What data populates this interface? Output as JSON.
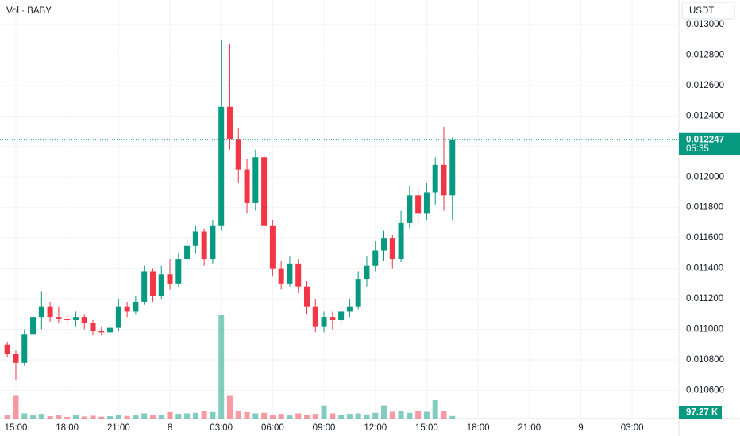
{
  "chart_data": {
    "type": "candlestick",
    "title": "Vol · BABY",
    "currency": "USDT",
    "countdown": "05:35",
    "last_volume_label": "97.27 K",
    "up_color": "#089981",
    "down_color": "#f23645",
    "grid": true,
    "categories": [
      null,
      "15:00",
      null,
      null,
      null,
      null,
      null,
      "18:00",
      null,
      null,
      null,
      null,
      null,
      "21:00",
      null,
      null,
      null,
      null,
      null,
      "8",
      null,
      null,
      null,
      null,
      null,
      "03:00",
      null,
      null,
      null,
      null,
      null,
      "06:00",
      null,
      null,
      null,
      null,
      null,
      "09:00",
      null,
      null,
      null,
      null,
      null,
      "12:00",
      null,
      null,
      null,
      null,
      null,
      "15:00",
      null,
      null,
      null,
      null,
      null,
      "18:00",
      null,
      null,
      null,
      null,
      null,
      "21:00",
      null,
      null,
      null,
      null,
      null,
      "9",
      null,
      null,
      null,
      null,
      null,
      "03:00",
      null,
      null,
      null,
      null,
      null
    ],
    "open": [
      0.0109,
      0.01084,
      0.01078,
      0.01097,
      0.01108,
      0.01115,
      0.01108,
      0.01107,
      0.01106,
      0.01108,
      0.01104,
      0.01099,
      0.01098,
      0.01101,
      0.01115,
      0.01112,
      0.01118,
      0.01138,
      0.01122,
      0.01136,
      0.0113,
      0.01146,
      0.01155,
      0.01164,
      0.01146,
      0.01168,
      0.01246,
      0.01225,
      0.01205,
      0.01183,
      0.01213,
      0.01168,
      0.0114,
      0.0113,
      0.01143,
      0.01128,
      0.01115,
      0.01102,
      0.01108,
      0.01106,
      0.01112,
      0.01115,
      0.01133,
      0.01142,
      0.01152,
      0.0116,
      0.01146,
      0.0117,
      0.01188,
      0.01176,
      0.0119,
      0.01208,
      0.01188,
      null,
      null,
      null,
      null,
      null,
      null,
      null,
      null,
      null,
      null,
      null,
      null,
      null,
      null,
      null,
      null,
      null,
      null,
      null,
      null,
      null,
      null,
      null,
      null,
      null,
      null
    ],
    "high": [
      0.01092,
      0.01086,
      0.011,
      0.01112,
      0.01125,
      0.01118,
      0.01115,
      0.0111,
      0.01112,
      0.0111,
      0.01106,
      0.01102,
      0.01104,
      0.0112,
      0.01118,
      0.01122,
      0.01142,
      0.0114,
      0.01142,
      0.01146,
      0.0115,
      0.0116,
      0.01168,
      0.01166,
      0.01172,
      0.0129,
      0.01287,
      0.01232,
      0.01212,
      0.01218,
      0.01215,
      0.01172,
      0.01145,
      0.01148,
      0.01146,
      0.01132,
      0.0112,
      0.01112,
      0.01112,
      0.01115,
      0.0112,
      0.01138,
      0.01148,
      0.01158,
      0.01165,
      0.01162,
      0.01178,
      0.01194,
      0.01192,
      0.01196,
      0.01213,
      0.01233,
      0.01226,
      null,
      null,
      null,
      null,
      null,
      null,
      null,
      null,
      null,
      null,
      null,
      null,
      null,
      null,
      null,
      null,
      null,
      null,
      null,
      null,
      null,
      null,
      null,
      null,
      null,
      null
    ],
    "low": [
      0.01082,
      0.01067,
      0.01076,
      0.01094,
      0.011,
      0.01105,
      0.01104,
      0.01103,
      0.01102,
      0.011,
      0.01096,
      0.01096,
      0.01096,
      0.01099,
      0.01108,
      0.0111,
      0.01116,
      0.01118,
      0.0112,
      0.01126,
      0.01128,
      0.0114,
      0.0115,
      0.01142,
      0.01143,
      0.01165,
      0.01218,
      0.01196,
      0.01176,
      0.01178,
      0.01162,
      0.01135,
      0.01126,
      0.01128,
      0.01124,
      0.0111,
      0.01098,
      0.01098,
      0.011,
      0.01103,
      0.01108,
      0.01113,
      0.01128,
      0.01138,
      0.01145,
      0.0114,
      0.01144,
      0.01166,
      0.0117,
      0.01172,
      0.01182,
      0.01178,
      0.01172,
      null,
      null,
      null,
      null,
      null,
      null,
      null,
      null,
      null,
      null,
      null,
      null,
      null,
      null,
      null,
      null,
      null,
      null,
      null,
      null,
      null,
      null,
      null,
      null,
      null,
      null
    ],
    "close": [
      0.01084,
      0.01078,
      0.01097,
      0.01108,
      0.01115,
      0.01108,
      0.01107,
      0.01106,
      0.01108,
      0.01104,
      0.01099,
      0.01098,
      0.01101,
      0.01115,
      0.01112,
      0.01118,
      0.01138,
      0.01122,
      0.01136,
      0.0113,
      0.01146,
      0.01155,
      0.01164,
      0.01146,
      0.01168,
      0.01246,
      0.01225,
      0.01205,
      0.01183,
      0.01213,
      0.01168,
      0.0114,
      0.0113,
      0.01143,
      0.01128,
      0.01115,
      0.01102,
      0.01108,
      0.01106,
      0.01112,
      0.01115,
      0.01133,
      0.01142,
      0.01152,
      0.0116,
      0.01146,
      0.0117,
      0.01188,
      0.01176,
      0.0119,
      0.01208,
      0.01188,
      0.012247,
      null,
      null,
      null,
      null,
      null,
      null,
      null,
      null,
      null,
      null,
      null,
      null,
      null,
      null,
      null,
      null,
      null,
      null,
      null,
      null,
      null,
      null,
      null,
      null,
      null,
      null
    ],
    "volume": [
      150,
      900,
      200,
      120,
      180,
      90,
      120,
      60,
      150,
      80,
      110,
      70,
      90,
      150,
      100,
      120,
      200,
      130,
      150,
      250,
      180,
      200,
      220,
      300,
      250,
      4000,
      900,
      300,
      250,
      200,
      220,
      150,
      180,
      120,
      200,
      150,
      180,
      500,
      200,
      150,
      180,
      200,
      160,
      220,
      500,
      260,
      280,
      220,
      300,
      260,
      700,
      300,
      97.27,
      null,
      null,
      null,
      null,
      null,
      null,
      null,
      null,
      null,
      null,
      null,
      null,
      null,
      null,
      null,
      null,
      null,
      null,
      null,
      null,
      null,
      null,
      null,
      null,
      null,
      null
    ],
    "ylim": [
      0.010415,
      0.013161
    ],
    "yticks": [
      {
        "value": 0.0106,
        "label": "0.010600"
      },
      {
        "value": 0.0108,
        "label": "0.010800"
      },
      {
        "value": 0.011,
        "label": "0.011000"
      },
      {
        "value": 0.0112,
        "label": "0.011200"
      },
      {
        "value": 0.0114,
        "label": "0.011400"
      },
      {
        "value": 0.0116,
        "label": "0.011600"
      },
      {
        "value": 0.0118,
        "label": "0.011800"
      },
      {
        "value": 0.012,
        "label": "0.012000"
      },
      {
        "value": 0.0122,
        "label": "0.012200"
      },
      {
        "value": 0.0124,
        "label": "0.012400"
      },
      {
        "value": 0.0126,
        "label": "0.012600"
      },
      {
        "value": 0.0128,
        "label": "0.012800"
      },
      {
        "value": 0.013,
        "label": "0.013000"
      }
    ]
  }
}
